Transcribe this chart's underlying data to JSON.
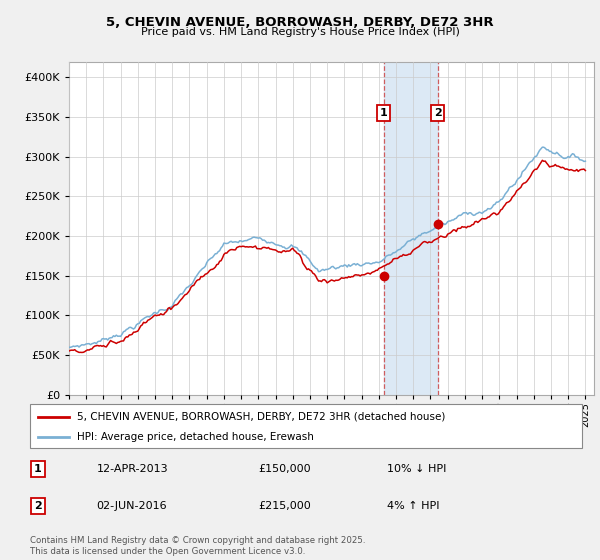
{
  "title_line1": "5, CHEVIN AVENUE, BORROWASH, DERBY, DE72 3HR",
  "title_line2": "Price paid vs. HM Land Registry's House Price Index (HPI)",
  "legend_line1": "5, CHEVIN AVENUE, BORROWASH, DERBY, DE72 3HR (detached house)",
  "legend_line2": "HPI: Average price, detached house, Erewash",
  "transaction1_date": "12-APR-2013",
  "transaction1_price": "£150,000",
  "transaction1_hpi": "10% ↓ HPI",
  "transaction2_date": "02-JUN-2016",
  "transaction2_price": "£215,000",
  "transaction2_hpi": "4% ↑ HPI",
  "footer": "Contains HM Land Registry data © Crown copyright and database right 2025.\nThis data is licensed under the Open Government Licence v3.0.",
  "hpi_color": "#7ab0d4",
  "property_color": "#cc0000",
  "highlight_color": "#dce9f5",
  "ylim": [
    0,
    420000
  ],
  "yticks": [
    0,
    50000,
    100000,
    150000,
    200000,
    250000,
    300000,
    350000,
    400000
  ],
  "xlim_start": 1995,
  "xlim_end": 2025.5,
  "t1_year_float": 2013.29,
  "t1_price": 150000,
  "t2_year_float": 2016.42,
  "t2_price": 215000,
  "bg_color": "#f0f0f0"
}
